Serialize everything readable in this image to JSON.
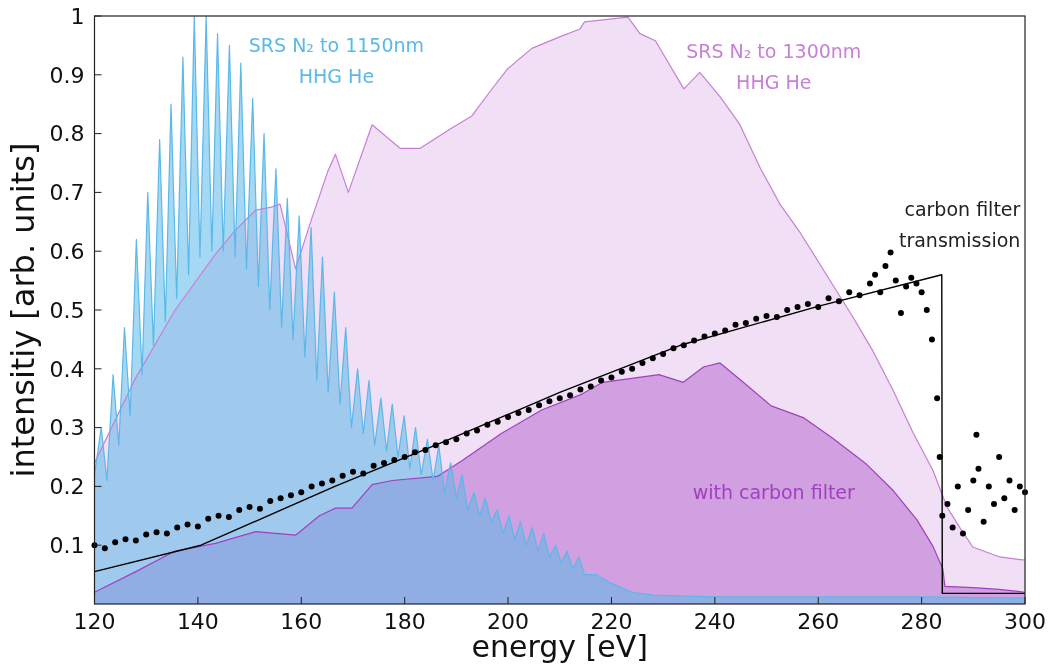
{
  "chart_data": {
    "type": "area",
    "xlabel": "energy [eV]",
    "ylabel": "intensitiy [arb. units]",
    "xlim": [
      120,
      300
    ],
    "ylim": [
      0,
      1
    ],
    "xticks": [
      120,
      140,
      160,
      180,
      200,
      220,
      240,
      260,
      280,
      300
    ],
    "yticks": [
      0.1,
      0.2,
      0.3,
      0.4,
      0.5,
      0.6,
      0.7,
      0.8,
      0.9,
      1
    ],
    "grid": false,
    "series": [
      {
        "name": "SRS N₂ to 1300nm HHG He",
        "color": "#c77fd8",
        "x": [
          120,
          128,
          135.6,
          143.4,
          147.2,
          151.2,
          154.2,
          155.9,
          158.9,
          162,
          165.1,
          166.6,
          169.1,
          173.7,
          179.1,
          183,
          189.2,
          193,
          196.8,
          199.9,
          204.6,
          210.1,
          213.9,
          214.8,
          223.2,
          225.5,
          228.5,
          234,
          237.1,
          241,
          244.8,
          248.8,
          252.6,
          256.4,
          262.8,
          266.7,
          270.6,
          274.5,
          278.3,
          282.2,
          284.9,
          287.4,
          289.9,
          295.1,
          299.6,
          300
        ],
        "values": [
          0.24,
          0.385,
          0.5,
          0.595,
          0.635,
          0.67,
          0.675,
          0.68,
          0.57,
          0.655,
          0.735,
          0.765,
          0.7,
          0.815,
          0.775,
          0.775,
          0.81,
          0.83,
          0.875,
          0.91,
          0.945,
          0.965,
          0.978,
          0.99,
          0.998,
          0.97,
          0.958,
          0.876,
          0.904,
          0.863,
          0.816,
          0.741,
          0.68,
          0.633,
          0.543,
          0.488,
          0.43,
          0.363,
          0.292,
          0.227,
          0.165,
          0.13,
          0.097,
          0.08,
          0.075,
          0.075
        ]
      },
      {
        "name": "with carbon filter",
        "color": "#a040c0",
        "x": [
          120,
          128,
          135.6,
          143.4,
          151.2,
          158.9,
          163.5,
          166.6,
          169.8,
          173.7,
          177.6,
          186.3,
          191,
          198.7,
          206.5,
          214.3,
          218.3,
          229.2,
          233.9,
          237.8,
          241,
          245.5,
          250.9,
          257.1,
          262.8,
          269.3,
          274.5,
          279.1,
          282.2,
          284.1,
          284.5,
          290,
          295,
          300
        ],
        "values": [
          0.02,
          0.055,
          0.09,
          0.103,
          0.123,
          0.117,
          0.15,
          0.163,
          0.163,
          0.203,
          0.21,
          0.217,
          0.243,
          0.29,
          0.33,
          0.357,
          0.377,
          0.39,
          0.377,
          0.403,
          0.41,
          0.377,
          0.337,
          0.317,
          0.282,
          0.238,
          0.193,
          0.143,
          0.098,
          0.06,
          0.03,
          0.028,
          0.025,
          0.02
        ]
      },
      {
        "name": "SRS N₂ to 1150nm HHG He",
        "color": "#5bb8e8",
        "x": [
          120,
          121.3,
          122.4,
          123.6,
          124.7,
          125.8,
          126.9,
          128.1,
          129.2,
          130.3,
          131.4,
          132.6,
          133.7,
          134.8,
          135.9,
          137.1,
          138.2,
          139.3,
          140.4,
          141.6,
          142.7,
          143.8,
          144.9,
          146.1,
          147.2,
          148.3,
          149.4,
          150.6,
          151.7,
          152.8,
          153.9,
          155.1,
          156.2,
          157.3,
          158.4,
          159.6,
          160.7,
          161.9,
          163,
          164.1,
          165.2,
          166.4,
          167.5,
          168.6,
          169.7,
          170.9,
          172,
          173.1,
          174.2,
          175.4,
          176.5,
          177.6,
          178.7,
          179.9,
          181,
          182.1,
          183.2,
          184.4,
          185.5,
          186.6,
          187.7,
          188.9,
          190,
          191.1,
          192.2,
          193.4,
          194.5,
          195.6,
          196.7,
          197.9,
          199,
          200.2,
          201.3,
          202.4,
          203.5,
          204.7,
          205.8,
          206.9,
          208,
          209.2,
          210.3,
          211.4,
          212.5,
          213.7,
          214.8,
          217,
          220,
          224,
          228,
          240,
          260,
          280,
          300
        ],
        "values": [
          0.22,
          0.3,
          0.21,
          0.39,
          0.27,
          0.47,
          0.32,
          0.62,
          0.39,
          0.7,
          0.44,
          0.79,
          0.48,
          0.85,
          0.52,
          0.93,
          0.56,
          1,
          0.59,
          1,
          0.6,
          0.97,
          0.6,
          0.95,
          0.59,
          0.92,
          0.57,
          0.86,
          0.54,
          0.8,
          0.5,
          0.74,
          0.47,
          0.69,
          0.45,
          0.66,
          0.42,
          0.64,
          0.38,
          0.59,
          0.36,
          0.53,
          0.34,
          0.47,
          0.3,
          0.4,
          0.29,
          0.38,
          0.27,
          0.35,
          0.26,
          0.34,
          0.25,
          0.32,
          0.23,
          0.3,
          0.22,
          0.28,
          0.21,
          0.27,
          0.19,
          0.24,
          0.18,
          0.22,
          0.16,
          0.19,
          0.15,
          0.18,
          0.14,
          0.16,
          0.12,
          0.15,
          0.11,
          0.14,
          0.1,
          0.13,
          0.09,
          0.12,
          0.08,
          0.1,
          0.07,
          0.09,
          0.06,
          0.08,
          0.05,
          0.05,
          0.035,
          0.02,
          0.015,
          0.012,
          0.012,
          0.012,
          0.01
        ]
      },
      {
        "name": "carbon filter transmission",
        "type": "line",
        "color": "#000000",
        "x": [
          120,
          140.6,
          166.5,
          186.8,
          210,
          233.3,
          260.3,
          283.9,
          284,
          300
        ],
        "values": [
          0.055,
          0.1,
          0.2,
          0.273,
          0.36,
          0.44,
          0.507,
          0.56,
          0.018,
          0.018
        ]
      },
      {
        "type": "scatter",
        "color": "#000000",
        "marker": "circle",
        "x": [
          120,
          122,
          124,
          126,
          128,
          130,
          132,
          134,
          136,
          138,
          140,
          142,
          144,
          146,
          148,
          150,
          152,
          154,
          156,
          158,
          160,
          162,
          164,
          166,
          168,
          170,
          172,
          174,
          176,
          178,
          180,
          182,
          184,
          186,
          188,
          190,
          192,
          194,
          196,
          198,
          200,
          202,
          204,
          206,
          208,
          210,
          212,
          214,
          216,
          218,
          220,
          222,
          224,
          226,
          228,
          230,
          232,
          234,
          236,
          238,
          240,
          242,
          244,
          246,
          248,
          250,
          252,
          254,
          256,
          258,
          260,
          262,
          264,
          266,
          268,
          270,
          271,
          272,
          273,
          274,
          275,
          276,
          277,
          278,
          279,
          280,
          281,
          282,
          283,
          283.5,
          284,
          285,
          286,
          287,
          288,
          289,
          290,
          290.6,
          291,
          292,
          293,
          294,
          295,
          296,
          297,
          298,
          299,
          300
        ],
        "values": [
          0.1,
          0.095,
          0.105,
          0.11,
          0.108,
          0.118,
          0.122,
          0.12,
          0.13,
          0.135,
          0.132,
          0.145,
          0.15,
          0.148,
          0.16,
          0.165,
          0.162,
          0.175,
          0.18,
          0.185,
          0.19,
          0.2,
          0.205,
          0.21,
          0.218,
          0.225,
          0.222,
          0.235,
          0.24,
          0.245,
          0.25,
          0.258,
          0.262,
          0.27,
          0.275,
          0.28,
          0.29,
          0.295,
          0.305,
          0.31,
          0.318,
          0.325,
          0.33,
          0.338,
          0.345,
          0.35,
          0.355,
          0.365,
          0.37,
          0.38,
          0.385,
          0.395,
          0.4,
          0.41,
          0.418,
          0.425,
          0.435,
          0.44,
          0.448,
          0.455,
          0.46,
          0.465,
          0.475,
          0.478,
          0.485,
          0.49,
          0.488,
          0.5,
          0.505,
          0.51,
          0.505,
          0.52,
          0.515,
          0.53,
          0.525,
          0.545,
          0.56,
          0.53,
          0.575,
          0.598,
          0.55,
          0.495,
          0.54,
          0.555,
          0.545,
          0.53,
          0.5,
          0.45,
          0.35,
          0.25,
          0.15,
          0.17,
          0.13,
          0.2,
          0.12,
          0.16,
          0.21,
          0.288,
          0.23,
          0.14,
          0.2,
          0.17,
          0.25,
          0.18,
          0.21,
          0.16,
          0.2,
          0.19
        ]
      }
    ]
  }
}
